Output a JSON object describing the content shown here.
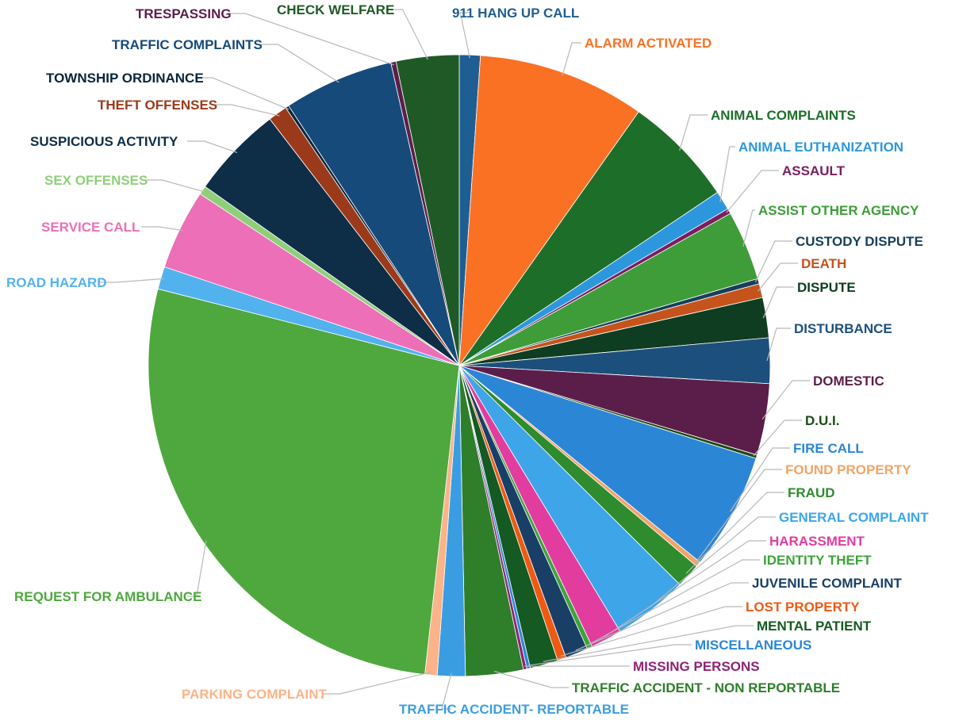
{
  "chart_data": {
    "type": "pie",
    "title": "",
    "slices": [
      {
        "label": "911 HANG UP CALL",
        "value": 1.2,
        "color": "#1F5E92"
      },
      {
        "label": "ALARM ACTIVATED",
        "value": 9.6,
        "color": "#FA7124"
      },
      {
        "label": "ANIMAL COMPLAINTS",
        "value": 6.4,
        "color": "#1D6E29"
      },
      {
        "label": "ANIMAL EUTHANIZATION",
        "value": 1.1,
        "color": "#2D97DE"
      },
      {
        "label": "ASSAULT",
        "value": 0.3,
        "color": "#7A1E5F"
      },
      {
        "label": "ASSIST OTHER AGENCY",
        "value": 4.0,
        "color": "#3E9D38"
      },
      {
        "label": "CUSTODY DISPUTE",
        "value": 0.3,
        "color": "#173E5B"
      },
      {
        "label": "DEATH",
        "value": 0.8,
        "color": "#C4541C"
      },
      {
        "label": "DISPUTE",
        "value": 2.3,
        "color": "#0F3D22"
      },
      {
        "label": "DISTURBANCE",
        "value": 2.6,
        "color": "#1D4F7C"
      },
      {
        "label": "DOMESTIC",
        "value": 4.1,
        "color": "#5B1E4A"
      },
      {
        "label": "D.U.I.",
        "value": 0.2,
        "color": "#1B4A16"
      },
      {
        "label": "FIRE CALL",
        "value": 6.7,
        "color": "#2C86D6"
      },
      {
        "label": "FOUND PROPERTY",
        "value": 0.3,
        "color": "#F2A468"
      },
      {
        "label": "FRAUD",
        "value": 1.4,
        "color": "#2E8B2E"
      },
      {
        "label": "GENERAL COMPLAINT",
        "value": 4.3,
        "color": "#3EA5E9"
      },
      {
        "label": "HARASSMENT",
        "value": 1.8,
        "color": "#E23C9E"
      },
      {
        "label": "IDENTITY THEFT",
        "value": 0.3,
        "color": "#3DA33C"
      },
      {
        "label": "JUVENILE COMPLAINT",
        "value": 1.3,
        "color": "#1A3F66"
      },
      {
        "label": "LOST PROPERTY",
        "value": 0.5,
        "color": "#EE5A12"
      },
      {
        "label": "MENTAL PATIENT",
        "value": 1.6,
        "color": "#145A22"
      },
      {
        "label": "MISCELLANEOUS",
        "value": 0.2,
        "color": "#2C86D6"
      },
      {
        "label": "MISSING PERSONS",
        "value": 0.2,
        "color": "#8E2472"
      },
      {
        "label": "TRAFFIC ACCIDENT - NON REPORTABLE",
        "value": 3.3,
        "color": "#2E7E2A"
      },
      {
        "label": "TRAFFIC ACCIDENT- REPORTABLE",
        "value": 1.6,
        "color": "#3B9DE1"
      },
      {
        "label": "PARKING COMPLAINT",
        "value": 0.7,
        "color": "#FBB387"
      },
      {
        "label": "REQUEST FOR AMBULANCE",
        "value": 30.0,
        "color": "#4EA83E"
      },
      {
        "label": "ROAD HAZARD",
        "value": 1.3,
        "color": "#52B2EE"
      },
      {
        "label": "SERVICE CALL",
        "value": 4.6,
        "color": "#EC6FB8"
      },
      {
        "label": "SEX OFFENSES",
        "value": 0.5,
        "color": "#8FCF7A"
      },
      {
        "label": "SUSPICIOUS ACTIVITY",
        "value": 5.3,
        "color": "#0E2D47"
      },
      {
        "label": "THEFT OFFENSES",
        "value": 1.1,
        "color": "#9B3A1A"
      },
      {
        "label": "TOWNSHIP ORDINANCE",
        "value": 0.2,
        "color": "#0B2438"
      },
      {
        "label": "TRAFFIC COMPLAINTS",
        "value": 6.3,
        "color": "#164A7A"
      },
      {
        "label": "TRESPASSING",
        "value": 0.3,
        "color": "#5B1E4A"
      },
      {
        "label": "CHECK WELFARE",
        "value": 3.6,
        "color": "#1F5A26"
      }
    ],
    "legend": "labels outside with leader lines",
    "start_angle_deg": 0,
    "direction": "clockwise"
  }
}
